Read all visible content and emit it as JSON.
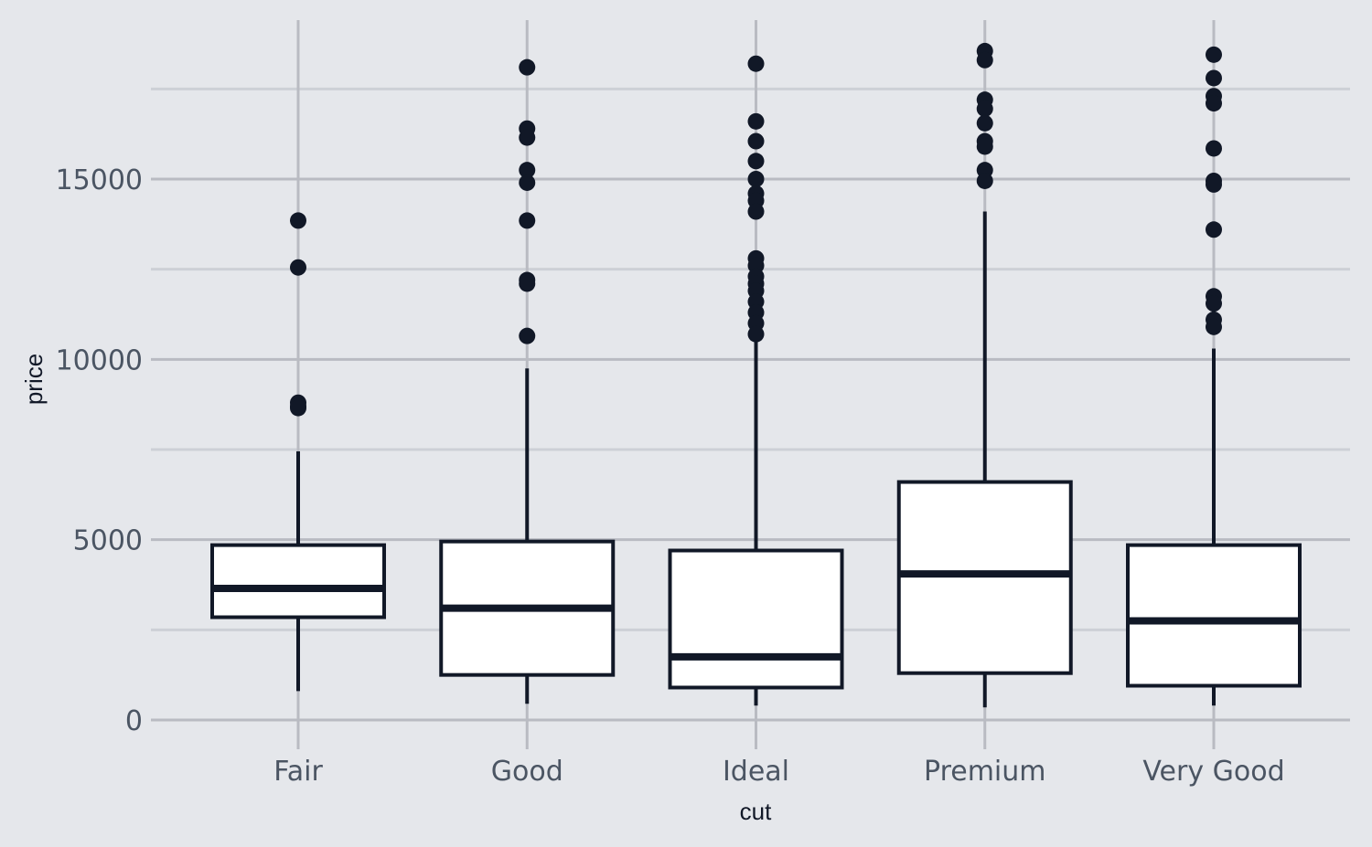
{
  "chart_data": {
    "type": "boxplot",
    "title": "",
    "xlabel": "cut",
    "ylabel": "price",
    "ylim": [
      0,
      18900
    ],
    "y_ticks": [
      0,
      5000,
      10000,
      15000
    ],
    "y_tick_labels": [
      "0",
      "5000",
      "10000",
      "15000"
    ],
    "grid": true,
    "categories": [
      "Fair",
      "Good",
      "Ideal",
      "Premium",
      "Very Good"
    ],
    "boxes": [
      {
        "category": "Fair",
        "whisker_low": 800,
        "q1": 2850,
        "median": 3650,
        "q3": 4850,
        "whisker_high": 7450,
        "outliers": [
          13850,
          12550,
          8800,
          8700,
          8650
        ]
      },
      {
        "category": "Good",
        "whisker_low": 450,
        "q1": 1250,
        "median": 3100,
        "q3": 4950,
        "whisker_high": 9750,
        "outliers": [
          18100,
          16400,
          16150,
          15250,
          14900,
          13850,
          12200,
          12100,
          10650
        ]
      },
      {
        "category": "Ideal",
        "whisker_low": 400,
        "q1": 900,
        "median": 1750,
        "q3": 4700,
        "whisker_high": 10650,
        "outliers": [
          18200,
          16600,
          16050,
          15500,
          15000,
          14600,
          14400,
          14100,
          12800,
          12600,
          12300,
          12100,
          11900,
          11600,
          11300,
          11000,
          10700
        ]
      },
      {
        "category": "Premium",
        "whisker_low": 350,
        "q1": 1300,
        "median": 4050,
        "q3": 6600,
        "whisker_high": 14100,
        "outliers": [
          18550,
          18300,
          17200,
          16950,
          16550,
          16050,
          15900,
          15250,
          14950
        ]
      },
      {
        "category": "Very Good",
        "whisker_low": 400,
        "q1": 950,
        "median": 2750,
        "q3": 4850,
        "whisker_high": 10300,
        "outliers": [
          18450,
          17800,
          17300,
          17100,
          15850,
          14950,
          14850,
          13600,
          11750,
          11550,
          11100,
          10900
        ]
      }
    ],
    "colors": {
      "background": "#e5e7eb",
      "grid_major": "#b9bbc2",
      "grid_minor": "#cdd0d6",
      "box_fill": "#ffffff",
      "stroke": "#111827"
    }
  }
}
